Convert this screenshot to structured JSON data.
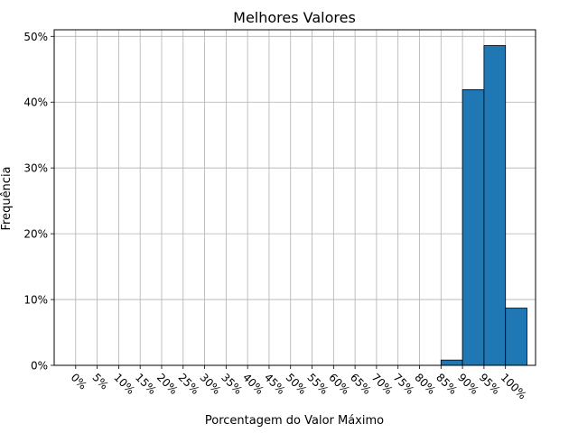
{
  "chart_data": {
    "type": "bar",
    "title": "Melhores Valores",
    "xlabel": "Porcentagem do Valor Máximo",
    "ylabel": "Frequência",
    "x_edges": [
      0,
      5,
      10,
      15,
      20,
      25,
      30,
      35,
      40,
      45,
      50,
      55,
      60,
      65,
      70,
      75,
      80,
      85,
      90,
      95,
      100
    ],
    "x_tick_labels": [
      "0%",
      "5%",
      "10%",
      "15%",
      "20%",
      "25%",
      "30%",
      "35%",
      "40%",
      "45%",
      "50%",
      "55%",
      "60%",
      "65%",
      "70%",
      "75%",
      "80%",
      "85%",
      "90%",
      "95%",
      "100%"
    ],
    "bins": [
      {
        "start": 85,
        "end": 90,
        "value": 0.8
      },
      {
        "start": 90,
        "end": 95,
        "value": 41.9
      },
      {
        "start": 95,
        "end": 100,
        "value": 48.6
      },
      {
        "start": 100,
        "end": 105,
        "value": 8.7
      }
    ],
    "xlim": [
      -5,
      107
    ],
    "ylim": [
      0,
      51
    ],
    "y_ticks": [
      0,
      10,
      20,
      30,
      40,
      50
    ],
    "y_tick_labels": [
      "0%",
      "10%",
      "20%",
      "30%",
      "40%",
      "50%"
    ],
    "grid": true,
    "bar_color": "#1f77b4",
    "edge_color": "#000000"
  }
}
